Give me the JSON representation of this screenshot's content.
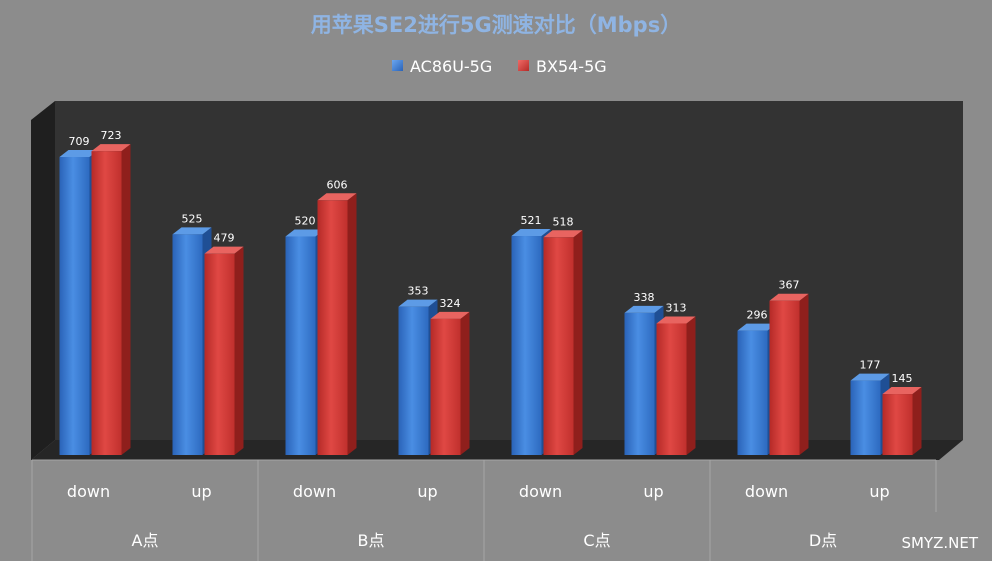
{
  "watermark": "SMYZ.NET",
  "colors": {
    "background": "#8c8c8c",
    "plot_back_wall": "#333333",
    "plot_side_wall": "#1f1f1f",
    "floor": "#2a2a2a",
    "title": "#8fb4e3",
    "series_blue": "#3a7bd5",
    "series_red": "#d63a36"
  },
  "chart_data": {
    "type": "bar",
    "style": "3d-clustered-column",
    "title": "用苹果SE2进行5G测速对比（Mbps）",
    "groups": [
      {
        "label": "A点",
        "categories": [
          "down",
          "up"
        ]
      },
      {
        "label": "B点",
        "categories": [
          "down",
          "up"
        ]
      },
      {
        "label": "C点",
        "categories": [
          "down",
          "up"
        ]
      },
      {
        "label": "D点",
        "categories": [
          "down",
          "up"
        ]
      }
    ],
    "categories": [
      "down",
      "up",
      "down",
      "up",
      "down",
      "up",
      "down",
      "up"
    ],
    "series": [
      {
        "name": "AC86U-5G",
        "color": "#3a7bd5",
        "values": [
          709,
          525,
          520,
          353,
          521,
          338,
          296,
          177
        ]
      },
      {
        "name": "BX54-5G",
        "color": "#d63a36",
        "values": [
          723,
          479,
          606,
          324,
          518,
          313,
          367,
          145
        ]
      }
    ],
    "ylim": [
      0,
      800
    ],
    "legend_position": "top",
    "grid": false
  }
}
